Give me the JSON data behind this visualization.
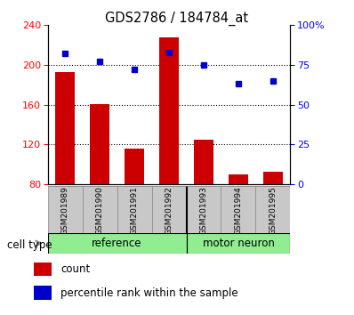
{
  "title": "GDS2786 / 184784_at",
  "samples": [
    "GSM201989",
    "GSM201990",
    "GSM201991",
    "GSM201992",
    "GSM201993",
    "GSM201994",
    "GSM201995"
  ],
  "bar_values": [
    193,
    161,
    116,
    228,
    125,
    90,
    93
  ],
  "percentile_values": [
    82,
    77,
    72,
    83,
    75,
    63,
    65
  ],
  "ref_count": 4,
  "motor_count": 3,
  "bar_color": "#cc0000",
  "dot_color": "#0000cc",
  "ylim_left": [
    80,
    240
  ],
  "ylim_right": [
    0,
    100
  ],
  "yticks_left": [
    80,
    120,
    160,
    200,
    240
  ],
  "yticks_right": [
    0,
    25,
    50,
    75,
    100
  ],
  "ytick_labels_right": [
    "0",
    "25",
    "50",
    "75",
    "100%"
  ],
  "grid_values": [
    120,
    160,
    200
  ],
  "bar_width": 0.55,
  "legend_count_label": "count",
  "legend_percentile_label": "percentile rank within the sample",
  "cell_type_label": "cell type",
  "ref_group_label": "reference",
  "motor_group_label": "motor neuron",
  "gray_box_color": "#c8c8c8",
  "green_box_color": "#90ee90",
  "box_edge_color": "#888888"
}
